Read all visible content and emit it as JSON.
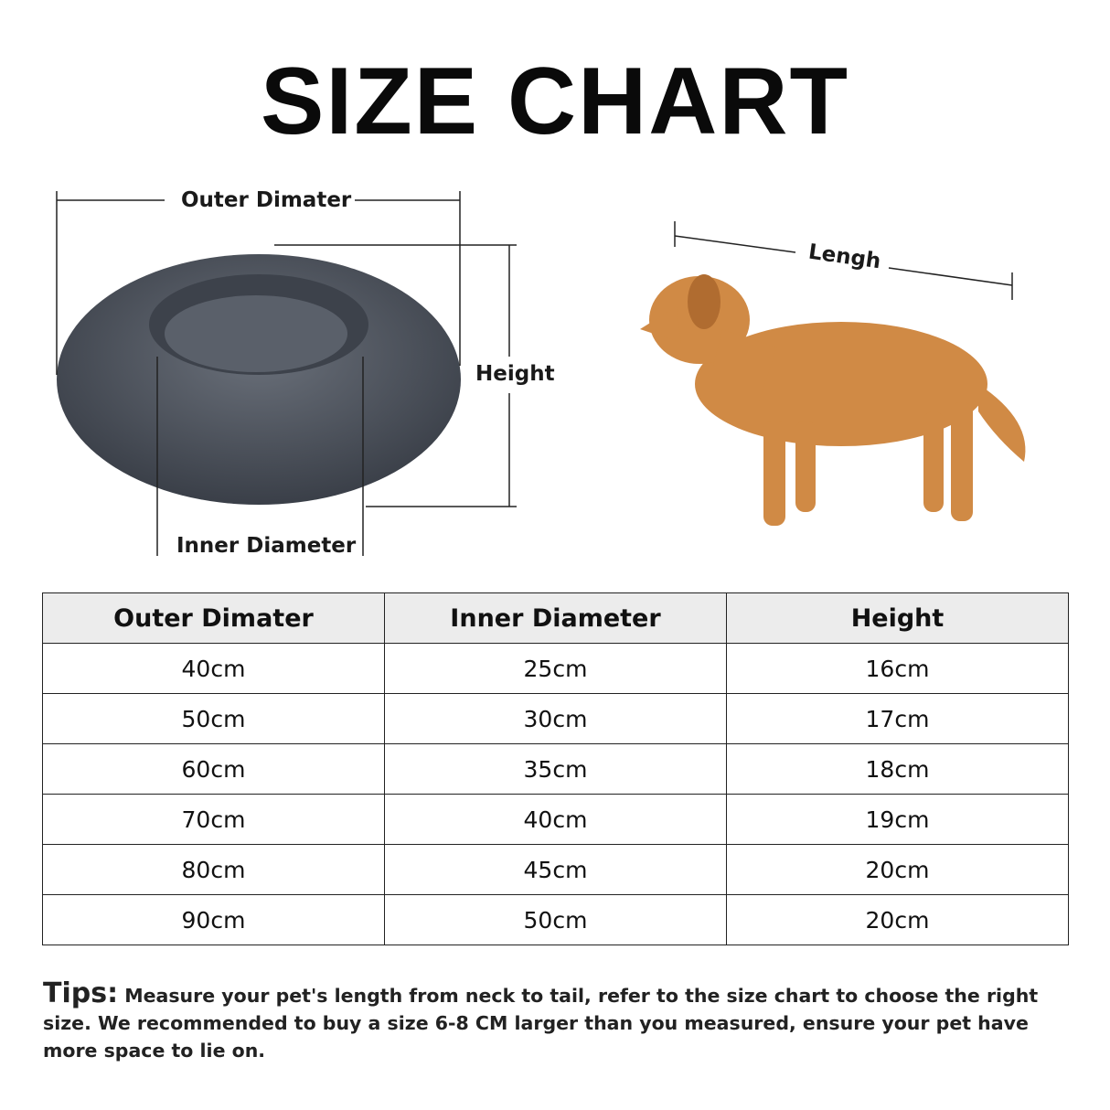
{
  "title": "SIZE CHART",
  "diagram": {
    "outer_label": "Outer Dimater",
    "inner_label": "Inner Diameter",
    "height_label": "Height",
    "length_label": "Lengh",
    "bed_color": "#4a4f58",
    "dog_color": "#d08a45"
  },
  "table": {
    "headers": [
      "Outer Dimater",
      "Inner Diameter",
      "Height"
    ],
    "rows": [
      [
        "40cm",
        "25cm",
        "16cm"
      ],
      [
        "50cm",
        "30cm",
        "17cm"
      ],
      [
        "60cm",
        "35cm",
        "18cm"
      ],
      [
        "70cm",
        "40cm",
        "19cm"
      ],
      [
        "80cm",
        "45cm",
        "20cm"
      ],
      [
        "90cm",
        "50cm",
        "20cm"
      ]
    ]
  },
  "tips": {
    "heading": "Tips:",
    "text": " Measure your pet's length from neck to tail, refer to the size chart to choose the right size. We recommended to buy a size 6-8 CM larger than you measured, ensure your pet have more space to lie on."
  }
}
